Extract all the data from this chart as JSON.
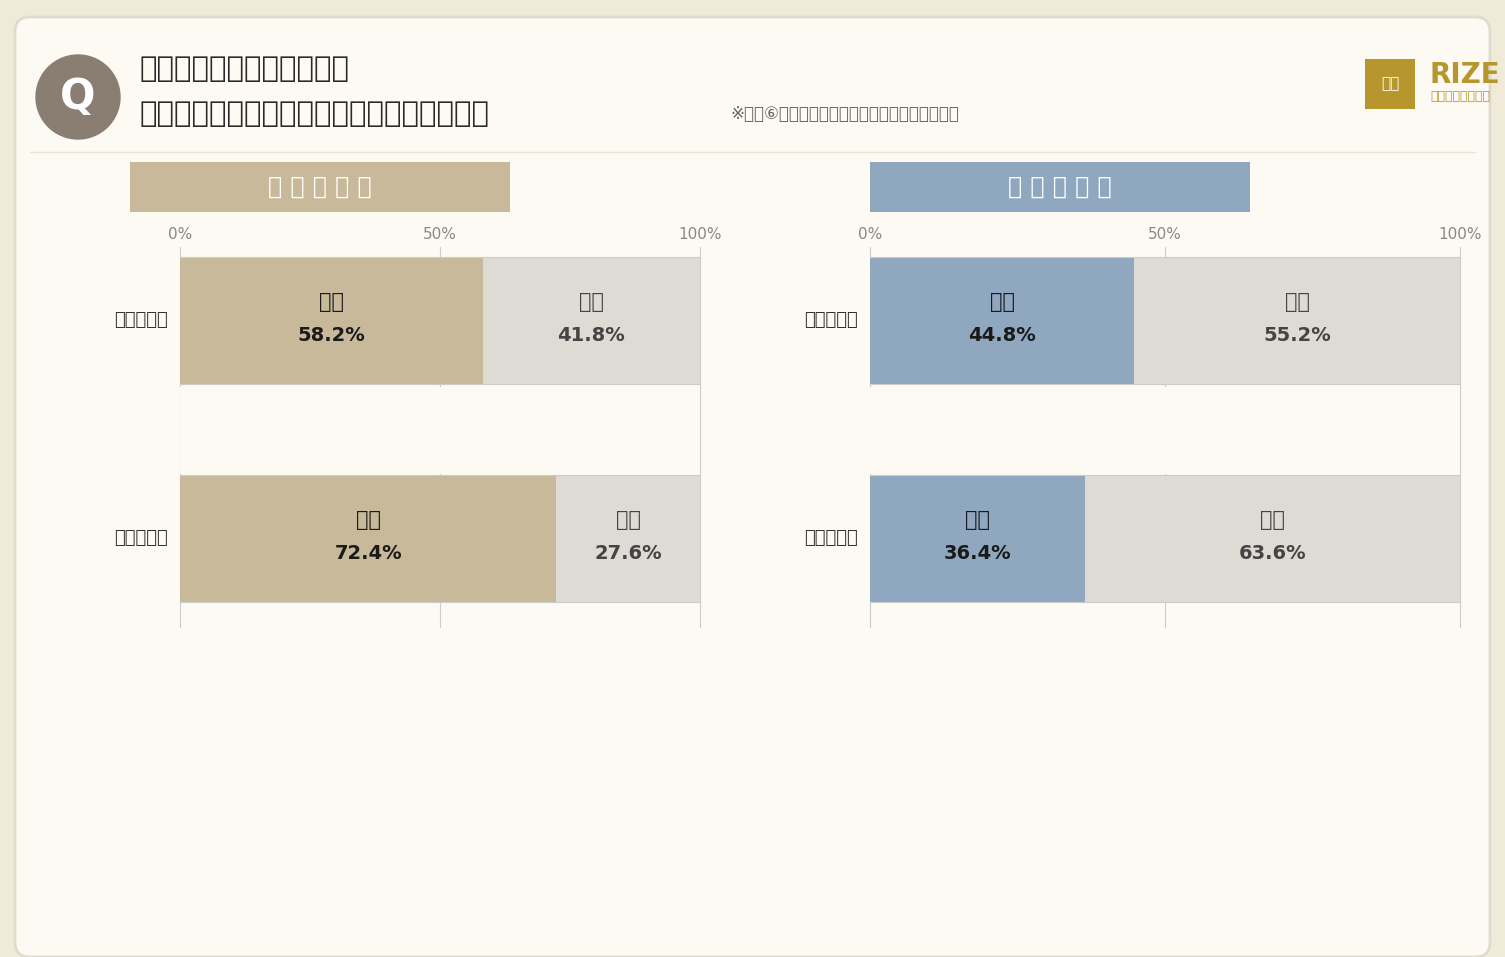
{
  "bg_outer": "#f0ead8",
  "bg_inner": "#fdfaf3",
  "title_line1": "子どもから「脱毛したい」",
  "title_line2": "と言われたことがありますか？（単一回答）",
  "title_note": "※質問⑥で「知っている」と回答した方のみ回答",
  "q_circle_color": "#8a7e72",
  "q_text": "Q",
  "left_header": "母 親 の 回 答",
  "right_header": "父 親 の 回 答",
  "left_header_bg": "#c8b99a",
  "right_header_bg": "#8fa8c0",
  "rows": [
    "子が小学生",
    "子が中学生"
  ],
  "left_data": [
    {
      "aru": 58.2,
      "nai": 41.8
    },
    {
      "aru": 72.4,
      "nai": 27.6
    }
  ],
  "right_data": [
    {
      "aru": 44.8,
      "nai": 55.2
    },
    {
      "aru": 36.4,
      "nai": 63.6
    }
  ],
  "left_aru_color": "#c8b99a",
  "left_nai_color": "#dedad4",
  "right_aru_color": "#8fa8c0",
  "right_nai_color": "#dedad4",
  "axis_text_color": "#888888",
  "bar_text_aru_color": "#333333",
  "bar_text_nai_color": "#555555",
  "row_label_color": "#333333",
  "rize_color": "#b8962e",
  "grid_color": "#cccccc",
  "divider_color": "#e8e4dc",
  "inner_border_color": "#e0dbd0"
}
